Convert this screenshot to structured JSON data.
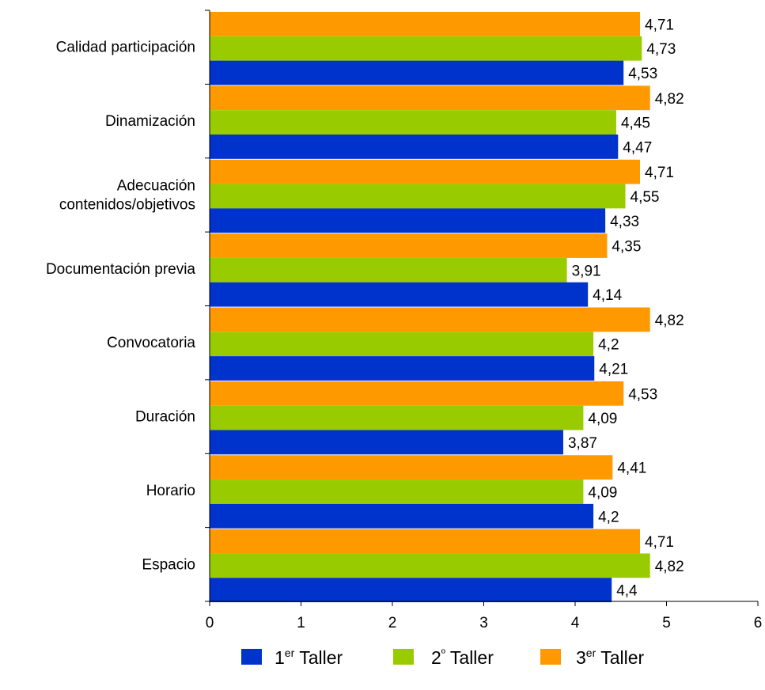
{
  "chart_data": {
    "type": "bar",
    "orientation": "horizontal",
    "categories": [
      [
        "Calidad participación"
      ],
      [
        "Dinamización"
      ],
      [
        "Adecuación",
        "contenidos/objetivos"
      ],
      [
        "Documentación previa"
      ],
      [
        "Convocatoria"
      ],
      [
        "Duración"
      ],
      [
        "Horario"
      ],
      [
        "Espacio"
      ]
    ],
    "series": [
      {
        "name": "3er Taller",
        "legend_base": "3",
        "legend_sup": "er",
        "legend_rest": " Taller",
        "color": "#ff9900",
        "values": [
          4.71,
          4.82,
          4.71,
          4.35,
          4.82,
          4.53,
          4.41,
          4.71
        ],
        "labels": [
          "4,71",
          "4,82",
          "4,71",
          "4,35",
          "4,82",
          "4,53",
          "4,41",
          "4,71"
        ]
      },
      {
        "name": "2º Taller",
        "legend_base": "2",
        "legend_sup": "º",
        "legend_rest": " Taller",
        "color": "#99cc00",
        "values": [
          4.73,
          4.45,
          4.55,
          3.91,
          4.2,
          4.09,
          4.09,
          4.82
        ],
        "labels": [
          "4,73",
          "4,45",
          "4,55",
          "3,91",
          "4,2",
          "4,09",
          "4,09",
          "4,82"
        ]
      },
      {
        "name": "1er Taller",
        "legend_base": "1",
        "legend_sup": "er",
        "legend_rest": " Taller",
        "color": "#0033cc",
        "values": [
          4.53,
          4.47,
          4.33,
          4.14,
          4.21,
          3.87,
          4.2,
          4.4
        ],
        "labels": [
          "4,53",
          "4,47",
          "4,33",
          "4,14",
          "4,21",
          "3,87",
          "4,2",
          "4,4"
        ]
      }
    ],
    "legend_order": [
      2,
      1,
      0
    ],
    "xlim": [
      0,
      6
    ],
    "x_ticks": [
      0,
      1,
      2,
      3,
      4,
      5,
      6
    ],
    "grid": false,
    "legend_position": "bottom"
  }
}
